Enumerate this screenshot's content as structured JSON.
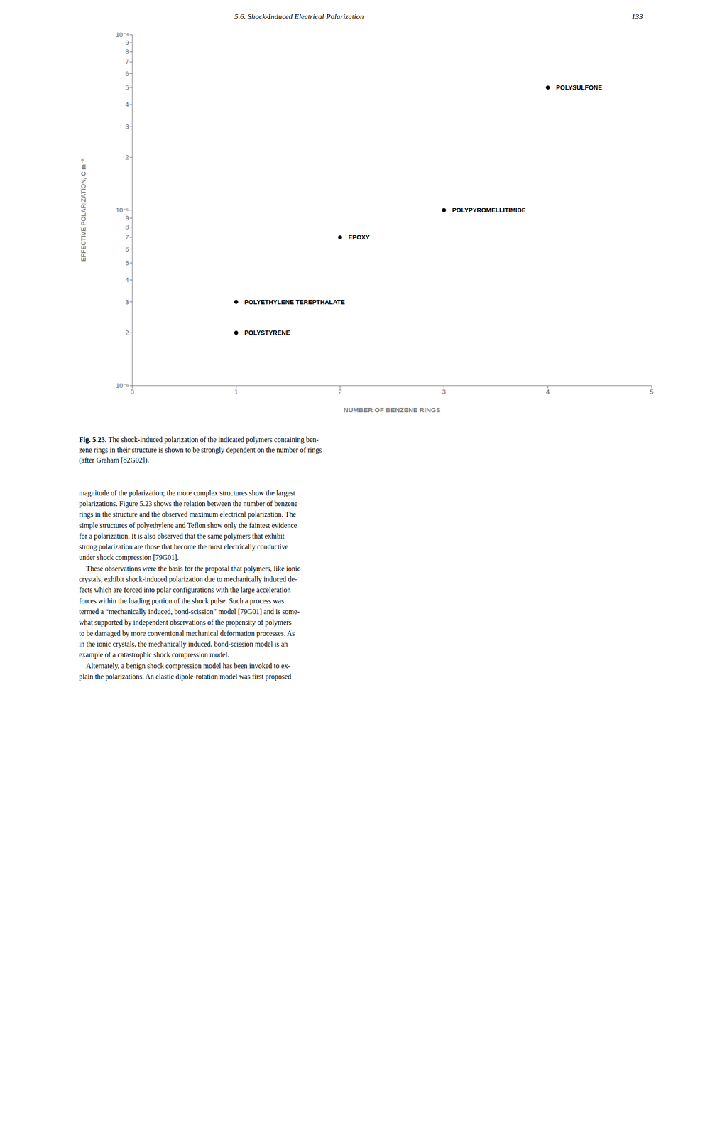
{
  "chart_data": {
    "type": "scatter",
    "x": [
      1.0,
      1.0,
      2.0,
      3.0,
      4.0
    ],
    "values": [
      2e-06,
      3e-06,
      7e-06,
      1e-05,
      5e-05
    ],
    "labels": [
      "POLYSTYRENE",
      "POLYETHYLENE TEREPTHALATE",
      "EPOXY",
      "POLYPYROMELLITIMIDE",
      "POLYSULFONE"
    ],
    "x_label": "NUMBER OF BENZENE RINGS",
    "y_label": "EFFECTIVE POLARIZATION, C m⁻²",
    "xlim": [
      0,
      5
    ],
    "xticks": [
      0,
      1,
      2,
      3,
      4,
      5
    ],
    "ylim": [
      1e-06,
      0.0001
    ],
    "yticks": [
      {
        "value": 1e-06,
        "label": "10⁻⁶"
      },
      {
        "value": 2e-06,
        "label": "2"
      },
      {
        "value": 3e-06,
        "label": "3"
      },
      {
        "value": 4e-06,
        "label": "4"
      },
      {
        "value": 5e-06,
        "label": "5"
      },
      {
        "value": 6e-06,
        "label": "6"
      },
      {
        "value": 7e-06,
        "label": "7"
      },
      {
        "value": 8e-06,
        "label": "8"
      },
      {
        "value": 9e-06,
        "label": "9"
      },
      {
        "value": 1e-05,
        "label": "10⁻⁵"
      },
      {
        "value": 2e-05,
        "label": "2"
      },
      {
        "value": 3e-05,
        "label": "3"
      },
      {
        "value": 4e-05,
        "label": "4"
      },
      {
        "value": 5e-05,
        "label": "5"
      },
      {
        "value": 6e-05,
        "label": "6"
      },
      {
        "value": 7e-05,
        "label": "7"
      },
      {
        "value": 8e-05,
        "label": "8"
      },
      {
        "value": 9e-05,
        "label": "9"
      },
      {
        "value": 0.0001,
        "label": "10⁻⁴"
      }
    ],
    "log": "y",
    "grid": false,
    "color": "#000000",
    "marker": "circle",
    "annotations": [
      "5.6. Shock-Induced Electrical Polarization",
      "133",
      "Fig. 5.23.",
      " The shock-induced polarization of the indicated polymers containing ben-\nzene rings in their structure is shown to be strongly dependent on the number of rings\n(after Graham [82G02]).",
      "magnitude of the polarization; the more complex structures show the largest\npolarizations. Figure 5.23 shows the relation between the number of benzene\nrings in the structure and the observed maximum electrical polarization. The\nsimple structures of polyethylene and Teflon show only the faintest evidence\nfor a polarization. It is also observed that the same polymers that exhibit\nstrong polarization are those that become the most electrically conductive\nunder shock compression [79G01].\n    These observations were the basis for the proposal that polymers, like ionic\ncrystals, exhibit shock-induced polarization due to mechanically induced de-\nfects which are forced into polar configurations with the large acceleration\nforces within the loading portion of the shock pulse. Such a process was\ntermed a “mechanically induced, bond-scission” model [79G01] and is some-\nwhat supported by independent observations of the propensity of polymers\nto be damaged by more conventional mechanical deformation processes. As\nin the ionic crystals, the mechanically induced, bond-scission model is an\nexample of a catastrophic shock compression model.\n    Alternately, a benign shock compression model has been invoked to ex-\nplain the polarizations. An elastic dipole-rotation model was first proposed"
    ]
  }
}
